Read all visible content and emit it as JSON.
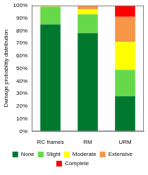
{
  "chart_data": {
    "type": "bar",
    "stacked": true,
    "grid": false,
    "legend": "bottom",
    "y_label": "Damage probability distribution",
    "categories": [
      "RC frames",
      "RM",
      "URM"
    ],
    "series": [
      {
        "name": "None",
        "color": "#00792f",
        "values": [
          85,
          78,
          28
        ]
      },
      {
        "name": "Slight",
        "color": "#66d94a",
        "values": [
          14,
          15,
          21
        ]
      },
      {
        "name": "Moderate",
        "color": "#ffff00",
        "values": [
          1,
          4,
          22
        ]
      },
      {
        "name": "Extensive",
        "color": "#f79646",
        "values": [
          0,
          3,
          20
        ]
      },
      {
        "name": "Complete",
        "color": "#ff0000",
        "values": [
          0,
          0,
          9
        ]
      }
    ],
    "ylim": [
      0,
      100
    ],
    "yticks": [
      {
        "value": 0,
        "label": "0%"
      },
      {
        "value": 10,
        "label": "10%"
      },
      {
        "value": 20,
        "label": "20%"
      },
      {
        "value": 30,
        "label": "30%"
      },
      {
        "value": 40,
        "label": "40%"
      },
      {
        "value": 50,
        "label": "50%"
      },
      {
        "value": 60,
        "label": "60%"
      },
      {
        "value": 70,
        "label": "70%"
      },
      {
        "value": 80,
        "label": "80%"
      },
      {
        "value": 90,
        "label": "90%"
      },
      {
        "value": 100,
        "label": "100%"
      }
    ]
  }
}
